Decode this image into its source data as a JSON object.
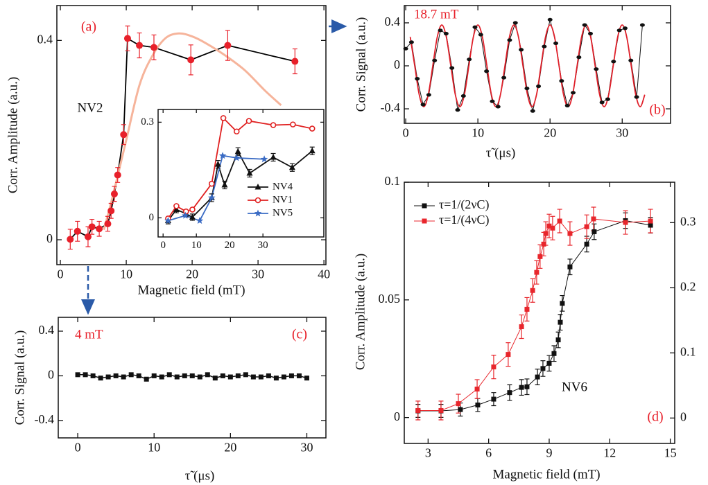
{
  "chart_data": [
    {
      "type": "line",
      "panel_label": "(a)",
      "text_color": "#e8202a",
      "x_label": "Magnetic field (mT)",
      "y_label": "Corr. Amplitude (a.u.)",
      "xlim": [
        -0.53,
        40.3
      ],
      "xticks": [
        0,
        10,
        20,
        30,
        40
      ],
      "ylim": [
        -0.05,
        0.47
      ],
      "yticks": [
        0,
        0.4
      ],
      "series": [
        {
          "name": "NV2",
          "color": "#e8202a",
          "line_color": "#000000",
          "marker": "circle",
          "x": [
            1.5,
            2.6,
            4.2,
            4.8,
            5.9,
            7.2,
            7.7,
            8.2,
            8.7,
            9.6,
            10.2,
            12,
            14.2,
            19.8,
            25.4,
            35.6
          ],
          "values": [
            0.001,
            0.017,
            0.006,
            0.026,
            0.022,
            0.032,
            0.058,
            0.092,
            0.13,
            0.211,
            0.404,
            0.39,
            0.386,
            0.361,
            0.39,
            0.358
          ],
          "errors": [
            0.02,
            0.02,
            0.02,
            0.015,
            0.015,
            0.015,
            0.015,
            0.015,
            0.015,
            0.02,
            0.025,
            0.025,
            0.025,
            0.03,
            0.03,
            0.025
          ]
        },
        {
          "color": "#f6b49b",
          "marker": "none",
          "smooth": true,
          "line_width": 3,
          "x": [
            6.6,
            8,
            10,
            12,
            14,
            16,
            18,
            20,
            22,
            25,
            28,
            31,
            33.5
          ],
          "values": [
            0.02,
            0.09,
            0.2,
            0.31,
            0.37,
            0.405,
            0.414,
            0.408,
            0.395,
            0.37,
            0.34,
            0.3,
            0.27
          ]
        }
      ]
    },
    {
      "type": "line",
      "legend": "bottom-right",
      "xlim": [
        -1.5,
        48.3
      ],
      "xticks": [
        0,
        10,
        20,
        30
      ],
      "ylim": [
        -0.06,
        0.34
      ],
      "yticks": [
        0,
        0.3
      ],
      "series": [
        {
          "name": "NV4",
          "color": "#111111",
          "marker": "triangle",
          "x": [
            1.5,
            4,
            6.9,
            8.8,
            14.6,
            16.5,
            18.5,
            22.5,
            26,
            33.1,
            38.8,
            44.8
          ],
          "values": [
            -0.009,
            0.026,
            0.013,
            0.002,
            0.063,
            0.168,
            0.103,
            0.208,
            0.14,
            0.19,
            0.158,
            0.21
          ],
          "errors": [
            0.01,
            0.01,
            0.01,
            0.01,
            0.012,
            0.012,
            0.012,
            0.012,
            0.012,
            0.012,
            0.012,
            0.012
          ]
        },
        {
          "name": "NV1",
          "color": "#e02020",
          "marker": "open-circle",
          "x": [
            1.5,
            4,
            6.9,
            8.8,
            14.6,
            18.1,
            22.1,
            25.8,
            33.1,
            39,
            44.8
          ],
          "values": [
            -0.002,
            0.037,
            0.02,
            0.026,
            0.107,
            0.313,
            0.271,
            0.304,
            0.291,
            0.293,
            0.28
          ]
        },
        {
          "name": "NV5",
          "color": "#3a6bc4",
          "marker": "star",
          "x": [
            1.5,
            6.7,
            11,
            14.6,
            17.9,
            22.1,
            30.4
          ],
          "values": [
            -0.009,
            0.007,
            -0.009,
            0.063,
            0.195,
            0.188,
            0.184
          ]
        }
      ]
    },
    {
      "type": "line",
      "panel_label": "(b)",
      "text_color": "#e8202a",
      "annotations": [
        "18.7 mT"
      ],
      "x_label": "τ̃ (μs)",
      "y_label": "Corr. Signal  (a.u.)",
      "xlim": [
        -0.2,
        36.7
      ],
      "xticks": [
        0,
        10,
        20,
        30
      ],
      "ylim": [
        -0.535,
        0.561
      ],
      "yticks": [
        -0.4,
        0,
        0.4
      ],
      "series": [
        {
          "color": "#111111",
          "marker": "dot",
          "line_width": 1,
          "x": [
            0,
            0.8,
            1.6,
            2.4,
            3.2,
            4,
            4.8,
            5.6,
            6.4,
            7.2,
            8,
            8.8,
            9.6,
            10.4,
            11.2,
            12,
            12.8,
            13.6,
            14.4,
            15.2,
            16,
            16.8,
            17.6,
            18.4,
            19.2,
            20,
            20.8,
            21.6,
            22.4,
            23.2,
            24,
            24.8,
            25.6,
            26.4,
            27.2,
            28,
            28.8,
            29.6,
            30.4,
            31.2,
            32,
            32.8
          ],
          "values": [
            0.16,
            0.22,
            -0.12,
            -0.36,
            -0.27,
            0.05,
            0.33,
            0.3,
            -0.02,
            -0.41,
            -0.28,
            0.06,
            0.36,
            0.29,
            -0.05,
            -0.33,
            -0.38,
            -0.11,
            0.24,
            0.4,
            0.15,
            -0.21,
            -0.42,
            -0.19,
            0.18,
            0.43,
            0.21,
            -0.14,
            -0.37,
            -0.25,
            0.08,
            0.38,
            0.3,
            -0.03,
            -0.34,
            -0.31,
            0.04,
            0.33,
            0.35,
            0.05,
            -0.29,
            0.38
          ]
        },
        {
          "color": "#e0202a",
          "marker": "none",
          "smooth": true,
          "line_width": 1.8,
          "x": [
            0.625,
            1.25,
            1.875,
            2.5,
            3.125,
            3.75,
            4.375,
            5,
            5.625,
            6.25,
            6.875,
            7.5,
            8.125,
            8.75,
            9.375,
            10,
            10.625,
            11.25,
            11.875,
            12.5,
            13.125,
            13.75,
            14.375,
            15,
            15.625,
            16.25,
            16.875,
            17.5,
            18.125,
            18.75,
            19.375,
            20,
            20.625,
            21.25,
            21.875,
            22.5,
            23.125,
            23.75,
            24.375,
            25,
            25.625,
            26.25,
            26.875,
            27.5,
            28.125,
            28.75,
            29.375,
            30,
            30.625,
            31.25,
            31.875,
            32.5,
            33.125
          ],
          "values": [
            0.269,
            0,
            -0.269,
            -0.38,
            -0.269,
            0,
            0.269,
            0.38,
            0.269,
            0,
            -0.269,
            -0.38,
            -0.269,
            0,
            0.269,
            0.38,
            0.269,
            0,
            -0.269,
            -0.38,
            -0.269,
            0,
            0.269,
            0.38,
            0.269,
            0,
            -0.269,
            -0.38,
            -0.269,
            0,
            0.269,
            0.38,
            0.269,
            0,
            -0.269,
            -0.38,
            -0.269,
            0,
            0.269,
            0.38,
            0.269,
            0,
            -0.269,
            -0.38,
            -0.269,
            0,
            0.269,
            0.38,
            0.269,
            0,
            -0.269,
            -0.38,
            -0.269
          ]
        }
      ]
    },
    {
      "type": "line",
      "panel_label": "(c)",
      "text_color": "#e8202a",
      "annotations": [
        "4 mT"
      ],
      "x_label": "τ̃ (μs)",
      "y_label": "Corr. Signal (a.u.)",
      "xlim": [
        -2.55,
        32.5
      ],
      "xticks": [
        0,
        10,
        20,
        30
      ],
      "ylim": [
        -0.556,
        0.524
      ],
      "yticks": [
        -0.4,
        0,
        0.4
      ],
      "series": [
        {
          "color": "#111111",
          "marker": "square",
          "line_width": 1.5,
          "x": [
            0,
            1,
            2,
            3,
            4,
            5,
            6,
            7,
            8,
            9,
            10,
            11,
            12,
            13,
            14,
            15,
            16,
            17,
            18,
            19,
            20,
            21,
            22,
            23,
            24,
            25,
            26,
            27,
            28,
            29,
            30
          ],
          "values": [
            0.01,
            0.01,
            0,
            -0.02,
            -0.01,
            0,
            -0.01,
            0.01,
            0,
            -0.03,
            0,
            -0.01,
            0.01,
            -0.01,
            0,
            0,
            -0.01,
            0.01,
            -0.02,
            0,
            -0.01,
            0,
            0.01,
            -0.01,
            -0.01,
            0,
            -0.02,
            -0.01,
            0,
            0,
            -0.02
          ]
        }
      ]
    },
    {
      "type": "line",
      "panel_label": "(d)",
      "text_color": "#e8202a",
      "annotations": [
        "NV6"
      ],
      "legend": "top-left",
      "x_label": "Magnetic field (mT)",
      "y_label": "Corr. Amplitude (a.u.)",
      "xlim": [
        1.82,
        15.22
      ],
      "xticks": [
        3,
        6,
        9,
        12,
        15
      ],
      "ylim": [
        -0.011,
        0.1
      ],
      "yticks": [
        0,
        0.05,
        0.1
      ],
      "y2lim": [
        -0.039,
        0.362
      ],
      "y2ticks": [
        0,
        0.1,
        0.2,
        0.3
      ],
      "series": [
        {
          "name": "τ=1/(2νC)",
          "color": "#111111",
          "marker": "square",
          "axis": "y2",
          "line_width": 1,
          "x": [
            2.5,
            3.64,
            4.6,
            5.46,
            6.25,
            7.04,
            7.63,
            7.9,
            8.42,
            8.69,
            9,
            9.24,
            9.45,
            9.55,
            9.65,
            10.03,
            10.86,
            11.23,
            12.78,
            14.02
          ],
          "values": [
            0.011,
            0.011,
            0.013,
            0.02,
            0.029,
            0.039,
            0.047,
            0.048,
            0.063,
            0.076,
            0.084,
            0.099,
            0.12,
            0.147,
            0.176,
            0.232,
            0.267,
            0.286,
            0.303,
            0.296
          ],
          "errors": [
            0.01,
            0.01,
            0.01,
            0.01,
            0.01,
            0.012,
            0.012,
            0.012,
            0.012,
            0.012,
            0.012,
            0.012,
            0.012,
            0.012,
            0.012,
            0.012,
            0.012,
            0.012,
            0.012,
            0.012
          ]
        },
        {
          "name": "τ=1/(4νC)",
          "color": "#e8262c",
          "marker": "square",
          "line_width": 1,
          "x": [
            2.5,
            3.64,
            4.5,
            5.43,
            6.25,
            6.97,
            7.63,
            7.9,
            8.18,
            8.38,
            8.55,
            8.73,
            8.83,
            9,
            9.17,
            9.52,
            10.03,
            10.86,
            11.2,
            12.78,
            14.02
          ],
          "values": [
            0.003,
            0.003,
            0.0059,
            0.0121,
            0.0215,
            0.0268,
            0.0386,
            0.046,
            0.054,
            0.0617,
            0.0684,
            0.0737,
            0.0782,
            0.0814,
            0.0805,
            0.0835,
            0.0782,
            0.0811,
            0.0844,
            0.0829,
            0.0835
          ],
          "errors": [
            0.004,
            0.004,
            0.004,
            0.004,
            0.005,
            0.005,
            0.005,
            0.005,
            0.005,
            0.005,
            0.005,
            0.005,
            0.005,
            0.005,
            0.005,
            0.005,
            0.005,
            0.005,
            0.005,
            0.005,
            0.005
          ]
        }
      ]
    }
  ]
}
